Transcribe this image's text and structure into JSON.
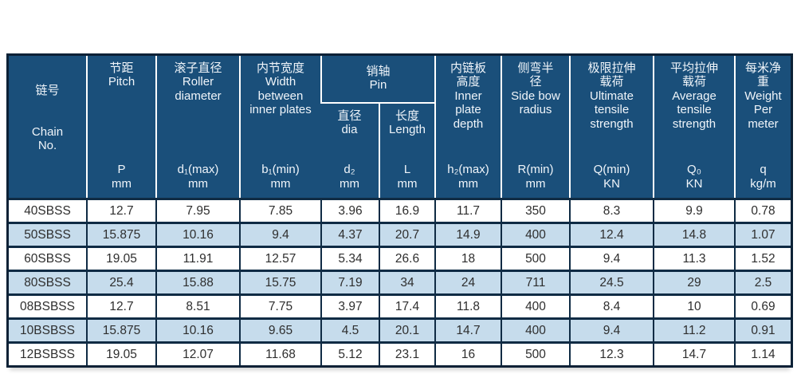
{
  "colors": {
    "header_bg": "#1A4F7A",
    "header_text": "#F0F5FA",
    "row_bg": "#FFFFFF",
    "row_alt_bg": "#C6DCEC",
    "border_dark": "#0F2B44",
    "outer_border": "#0C2136",
    "separator_light": "#FFFFFF",
    "data_text": "#2E2E2E"
  },
  "table": {
    "header": {
      "chain_no": {
        "title": "链号",
        "symbol": "Chain\nNo."
      },
      "pitch": {
        "title": "节距\nPitch",
        "symbol": "P\nmm"
      },
      "roller": {
        "title": "滚子直径\nRoller\ndiameter",
        "symbol": "d₁(max)\nmm"
      },
      "width": {
        "title": "内节宽度\nWidth\nbetween\ninner plates",
        "symbol": "b₁(min)\nmm"
      },
      "pin_group": {
        "title": "销轴\nPin"
      },
      "pin_dia": {
        "title": "直径\ndia",
        "symbol": "d₂\nmm"
      },
      "pin_length": {
        "title": "长度\nLength",
        "symbol": "L\nmm"
      },
      "inner_plate": {
        "title": "内链板\n高度\nInner\nplate\ndepth",
        "symbol": "h₂(max)\nmm"
      },
      "side_bow": {
        "title": "侧弯半\n径\nSide bow\nradius",
        "symbol": "R(min)\nmm"
      },
      "ultimate": {
        "title": "极限拉伸\n载荷\nUltimate\ntensile\nstrength",
        "symbol": "Q(min)\nKN"
      },
      "average": {
        "title": "平均拉伸\n载荷\nAverage\ntensile\nstrength",
        "symbol": "Q₀\nKN"
      },
      "weight": {
        "title": "每米净\n重\nWeight\nPer\nmeter",
        "symbol": "q\nkg/m"
      }
    },
    "rows": [
      {
        "cells": [
          "40SBSS",
          "12.7",
          "7.95",
          "7.85",
          "3.96",
          "16.9",
          "11.7",
          "350",
          "8.3",
          "9.9",
          "0.78"
        ]
      },
      {
        "cells": [
          "50SBSS",
          "15.875",
          "10.16",
          "9.4",
          "4.37",
          "20.7",
          "14.9",
          "400",
          "12.4",
          "14.8",
          "1.07"
        ]
      },
      {
        "cells": [
          "60SBSS",
          "19.05",
          "11.91",
          "12.57",
          "5.34",
          "26.6",
          "18",
          "500",
          "9.4",
          "11.3",
          "1.52"
        ]
      },
      {
        "cells": [
          "80SBSS",
          "25.4",
          "15.88",
          "15.75",
          "7.19",
          "34",
          "24",
          "711",
          "24.5",
          "29",
          "2.5"
        ]
      },
      {
        "cells": [
          "08BSBSS",
          "12.7",
          "8.51",
          "7.75",
          "3.97",
          "17.4",
          "11.8",
          "400",
          "8.4",
          "10",
          "0.69"
        ]
      },
      {
        "cells": [
          "10BSBSS",
          "15.875",
          "10.16",
          "9.65",
          "4.5",
          "20.1",
          "14.7",
          "400",
          "9.4",
          "11.2",
          "0.91"
        ]
      },
      {
        "cells": [
          "12BSBSS",
          "19.05",
          "12.07",
          "11.68",
          "5.12",
          "23.1",
          "16",
          "500",
          "12.3",
          "14.7",
          "1.14"
        ]
      }
    ]
  }
}
